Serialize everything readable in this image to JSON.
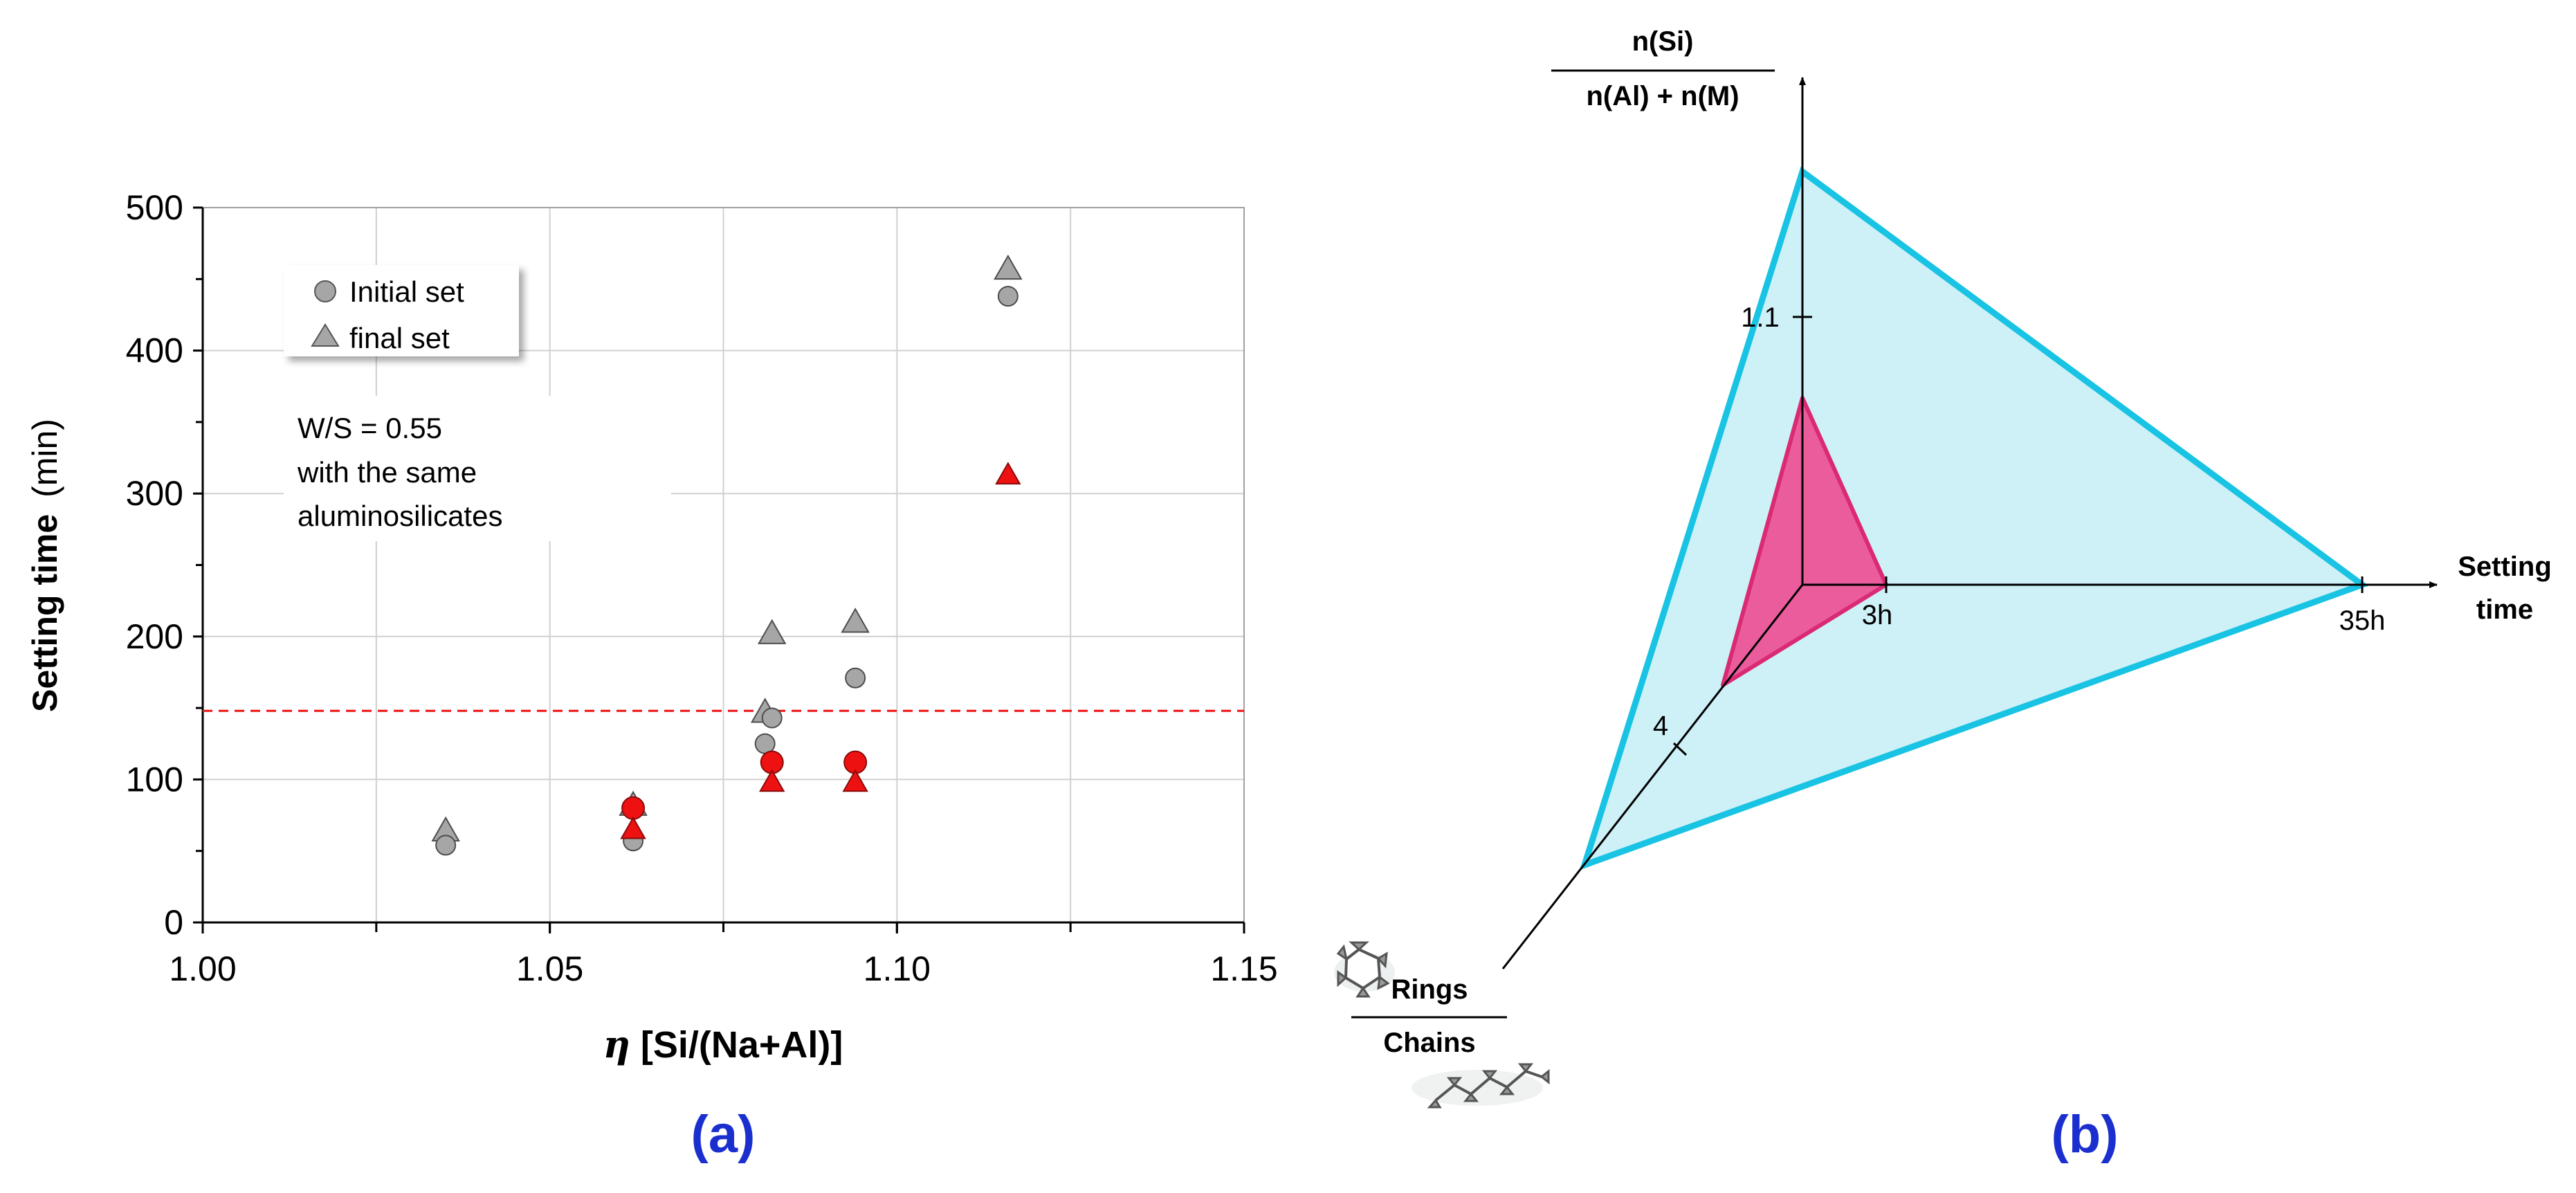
{
  "colors": {
    "gray_marker": "#a6a6a6",
    "red_marker": "#ee1111",
    "dashed_line": "#ee1111",
    "cyan_edge": "#19c3e3",
    "cyan_fill": "#cdf1f7",
    "pink_edge": "#d92a73",
    "pink_fill": "#ee4f95",
    "panel_label": "#1b2fcf",
    "grid": "#d0d0d0"
  },
  "panel_a": {
    "label": "(a)",
    "note_line1": "W/S = 0.55",
    "note_line2": "with the same",
    "note_line3": "aluminosilicates"
  },
  "panel_b": {
    "label": "(b)",
    "axis_top_numerator": "n(Si)",
    "axis_top_denominator": "n(Al) + n(M)",
    "axis_right_line1": "Setting",
    "axis_right_line2": "time",
    "axis_diag_numerator": "Rings",
    "axis_diag_denominator": "Chains",
    "tick_top": "1.1",
    "tick_right_inner": "3h",
    "tick_right_outer": "35h",
    "tick_diag": "4",
    "icon_rings": "ring-molecule-icon",
    "icon_chains": "chain-molecule-icon"
  },
  "chart_data": [
    {
      "type": "scatter",
      "title": "",
      "xlabel_symbol": "η",
      "xlabel_rest": "[Si/(Na+Al)]",
      "ylabel_bold": "Setting time",
      "ylabel_unit": "(min)",
      "xlim": [
        1.0,
        1.15
      ],
      "ylim": [
        0,
        500
      ],
      "xticks": [
        "1.00",
        "1.05",
        "1.10",
        "1.15"
      ],
      "xtick_values": [
        1.0,
        1.05,
        1.1,
        1.15
      ],
      "yticks": [
        "0",
        "100",
        "200",
        "300",
        "400",
        "500"
      ],
      "ytick_values": [
        0,
        100,
        200,
        300,
        400,
        500
      ],
      "grid": true,
      "legend_placement": "top-left",
      "reference_line": {
        "y": 148,
        "style": "dashed",
        "color": "#ee1111"
      },
      "series": [
        {
          "name": "Initial set",
          "marker": "circle",
          "color": "#a6a6a6",
          "in_legend": true,
          "points": [
            [
              1.035,
              54
            ],
            [
              1.062,
              57
            ],
            [
              1.081,
              125
            ],
            [
              1.082,
              143
            ],
            [
              1.094,
              171
            ],
            [
              1.116,
              438
            ]
          ]
        },
        {
          "name": "final set",
          "marker": "triangle",
          "color": "#a6a6a6",
          "in_legend": true,
          "points": [
            [
              1.035,
              64
            ],
            [
              1.062,
              82
            ],
            [
              1.081,
              147
            ],
            [
              1.082,
              202
            ],
            [
              1.094,
              210
            ],
            [
              1.116,
              457
            ]
          ]
        },
        {
          "name": "Initial set (red)",
          "marker": "circle",
          "color": "#ee1111",
          "in_legend": false,
          "points": [
            [
              1.062,
              80
            ],
            [
              1.082,
              112
            ],
            [
              1.094,
              112
            ]
          ]
        },
        {
          "name": "final set (red)",
          "marker": "triangle",
          "color": "#ee1111",
          "in_legend": false,
          "points": [
            [
              1.062,
              65
            ],
            [
              1.082,
              98
            ],
            [
              1.094,
              98
            ],
            [
              1.116,
              313
            ]
          ]
        }
      ]
    },
    {
      "type": "radar",
      "title": "",
      "axes": [
        {
          "name": "n(Si) / (n(Al) + n(M))",
          "tick_label": "1.1",
          "tick_value": 1.1
        },
        {
          "name": "Setting time",
          "tick_labels": [
            "3h",
            "35h"
          ],
          "tick_values": [
            3,
            35
          ]
        },
        {
          "name": "Rings / Chains",
          "tick_label": "4",
          "tick_value": 4
        }
      ],
      "series": [
        {
          "name": "large triangle",
          "color": "#19c3e3",
          "fill": "#cdf1f7",
          "values": {
            "setting_time_h": 35
          }
        },
        {
          "name": "small triangle",
          "color": "#d92a73",
          "fill": "#ee4f95",
          "values": {
            "setting_time_h": 3
          }
        }
      ]
    }
  ]
}
